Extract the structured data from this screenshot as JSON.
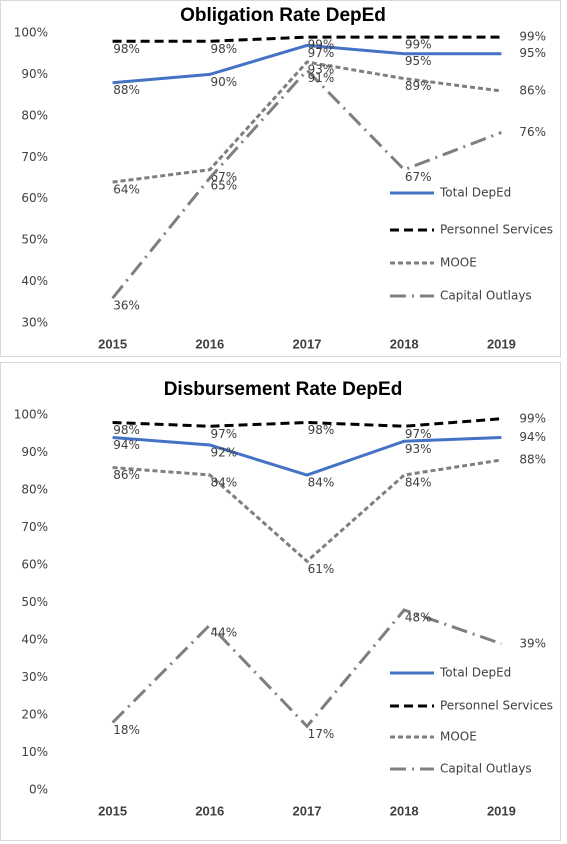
{
  "chart_data": [
    {
      "type": "line",
      "title": "Obligation Rate DepEd",
      "categories": [
        "2015",
        "2016",
        "2017",
        "2018",
        "2019"
      ],
      "ylim": [
        30,
        100
      ],
      "yticks": [
        {
          "value": 30,
          "label": "30%"
        },
        {
          "value": 40,
          "label": "40%"
        },
        {
          "value": 50,
          "label": "50%"
        },
        {
          "value": 60,
          "label": "60%"
        },
        {
          "value": 70,
          "label": "70%"
        },
        {
          "value": 80,
          "label": "80%"
        },
        {
          "value": 90,
          "label": "90%"
        },
        {
          "value": 100,
          "label": "100%"
        }
      ],
      "series": [
        {
          "name": "Total DepEd",
          "color": "#4472c4",
          "values": [
            88,
            90,
            97,
            95,
            95
          ],
          "value_labels": [
            "88%",
            "90%",
            "97%",
            "95%",
            "95%"
          ]
        },
        {
          "name": "Personnel Services",
          "color": "#000000",
          "values": [
            98,
            98,
            99,
            99,
            99
          ],
          "value_labels": [
            "98%",
            "98%",
            "99%",
            "99%",
            "99%"
          ]
        },
        {
          "name": "MOOE",
          "color": "#7f7f7f",
          "values": [
            64,
            67,
            93,
            89,
            86
          ],
          "value_labels": [
            "64%",
            "67%",
            "93%",
            "89%",
            "86%"
          ]
        },
        {
          "name": "Capital Outlays",
          "color": "#7f7f7f",
          "values": [
            36,
            65,
            91,
            67,
            76
          ],
          "value_labels": [
            "36%",
            "65%",
            "91%",
            "67%",
            "76%"
          ]
        }
      ]
    },
    {
      "type": "line",
      "title": "Disbursement Rate DepEd",
      "categories": [
        "2015",
        "2016",
        "2017",
        "2018",
        "2019"
      ],
      "ylim": [
        0,
        100
      ],
      "yticks": [
        {
          "value": 0,
          "label": "0%"
        },
        {
          "value": 10,
          "label": "10%"
        },
        {
          "value": 20,
          "label": "20%"
        },
        {
          "value": 30,
          "label": "30%"
        },
        {
          "value": 40,
          "label": "40%"
        },
        {
          "value": 50,
          "label": "50%"
        },
        {
          "value": 60,
          "label": "60%"
        },
        {
          "value": 70,
          "label": "70%"
        },
        {
          "value": 80,
          "label": "80%"
        },
        {
          "value": 90,
          "label": "90%"
        },
        {
          "value": 100,
          "label": "100%"
        }
      ],
      "series": [
        {
          "name": "Total DepEd",
          "color": "#4472c4",
          "values": [
            94,
            92,
            84,
            93,
            94
          ],
          "value_labels": [
            "94%",
            "92%",
            "84%",
            "93%",
            "94%"
          ]
        },
        {
          "name": "Personnel Services",
          "color": "#000000",
          "values": [
            98,
            97,
            98,
            97,
            99
          ],
          "value_labels": [
            "98%",
            "97%",
            "98%",
            "97%",
            "99%"
          ]
        },
        {
          "name": "MOOE",
          "color": "#7f7f7f",
          "values": [
            86,
            84,
            61,
            84,
            88
          ],
          "value_labels": [
            "86%",
            "84%",
            "61%",
            "84%",
            "88%"
          ]
        },
        {
          "name": "Capital Outlays",
          "color": "#7f7f7f",
          "values": [
            18,
            44,
            17,
            48,
            39
          ],
          "value_labels": [
            "18%",
            "44%",
            "17%",
            "48%",
            "39%"
          ]
        }
      ]
    }
  ]
}
